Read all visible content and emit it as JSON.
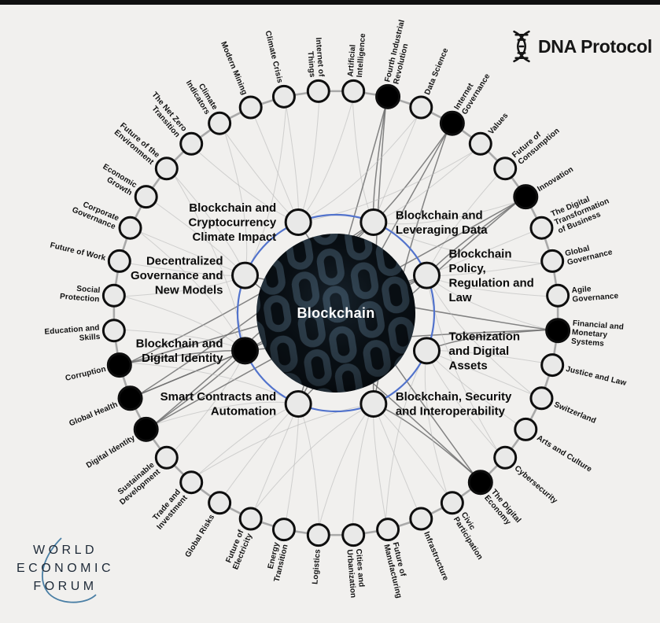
{
  "colors": {
    "background": "#f1f0ee",
    "top_bar": "#101010",
    "node_fill": "#e9e9e8",
    "node_stroke": "#0e0e0e",
    "node_filled": "#000000",
    "ring": "#a9a9a9",
    "inner_ring": "#5273cc",
    "link": "#b9b9b9",
    "link_strong": "#6f6f6f",
    "center_fill": "#060a0e",
    "chain_link": "#2f404d",
    "wef_text": "#1e2a38",
    "swoosh": "#4a7fa5"
  },
  "brand": {
    "dna_label": "DNA Protocol",
    "dna_icon": "dna-helix-icon",
    "wef_lines": [
      "WORLD",
      "ECONOMIC",
      "FORUM"
    ]
  },
  "map": {
    "type": "radial-network",
    "center_label": "Blockchain",
    "start_angle_deg": 4.5,
    "step_deg": 9,
    "inner_topics": [
      {
        "label": "Blockchain and Leveraging Data",
        "lines": [
          "Blockchain and",
          "Leveraging Data"
        ],
        "angle": 22.5,
        "side": "right",
        "filled": false
      },
      {
        "label": "Blockchain Policy, Regulation and Law",
        "lines": [
          "Blockchain",
          "Policy,",
          "Regulation and",
          "Law"
        ],
        "angle": 67.5,
        "side": "right",
        "filled": false
      },
      {
        "label": "Tokenization and Digital Assets",
        "lines": [
          "Tokenization",
          "and Digital",
          "Assets"
        ],
        "angle": 112.5,
        "side": "right",
        "filled": false
      },
      {
        "label": "Blockchain, Security and Interoperability",
        "lines": [
          "Blockchain, Security",
          "and Interoperability"
        ],
        "angle": 157.5,
        "side": "right",
        "filled": false
      },
      {
        "label": "Smart Contracts and Automation",
        "lines": [
          "Smart Contracts and",
          "Automation"
        ],
        "angle": 202.5,
        "side": "left",
        "filled": false
      },
      {
        "label": "Blockchain and Digital Identity",
        "lines": [
          "Blockchain and",
          "Digital Identity"
        ],
        "angle": 247.5,
        "side": "left",
        "filled": true
      },
      {
        "label": "Decentralized Governance and New Models",
        "lines": [
          "Decentralized",
          "Governance and",
          "New Models"
        ],
        "angle": 292.5,
        "side": "left",
        "filled": false
      },
      {
        "label": "Blockchain and Cryptocurrency Climate Impact",
        "lines": [
          "Blockchain and",
          "Cryptocurrency",
          "Climate Impact"
        ],
        "angle": 337.5,
        "side": "left",
        "filled": false
      }
    ],
    "outer_topics": [
      {
        "label": "Artificial Intelligence",
        "lines": [
          "Artificial",
          "Intelligence"
        ],
        "filled": false
      },
      {
        "label": "Fourth Industrial Revolution",
        "lines": [
          "Fourth Industrial",
          "Revolution"
        ],
        "filled": true
      },
      {
        "label": "Data Science",
        "lines": [
          "Data Science"
        ],
        "filled": false
      },
      {
        "label": "Internet Governance",
        "lines": [
          "Internet",
          "Governance"
        ],
        "filled": true
      },
      {
        "label": "Values",
        "lines": [
          "Values"
        ],
        "filled": false
      },
      {
        "label": "Future of Consumption",
        "lines": [
          "Future of",
          "Consumption"
        ],
        "filled": false
      },
      {
        "label": "Innovation",
        "lines": [
          "Innovation"
        ],
        "filled": true
      },
      {
        "label": "The Digital Transformation of Business",
        "lines": [
          "The Digital",
          "Transformation",
          "of Business"
        ],
        "filled": false
      },
      {
        "label": "Global Governance",
        "lines": [
          "Global",
          "Governance"
        ],
        "filled": false
      },
      {
        "label": "Agile Governance",
        "lines": [
          "Agile",
          "Governance"
        ],
        "filled": false
      },
      {
        "label": "Financial and Monetary Systems",
        "lines": [
          "Financial and",
          "Monetary",
          "Systems"
        ],
        "filled": true
      },
      {
        "label": "Justice and Law",
        "lines": [
          "Justice and Law"
        ],
        "filled": false
      },
      {
        "label": "Switzerland",
        "lines": [
          "Switzerland"
        ],
        "filled": false
      },
      {
        "label": "Arts and Culture",
        "lines": [
          "Arts and Culture"
        ],
        "filled": false
      },
      {
        "label": "Cybersecurity",
        "lines": [
          "Cybersecurity"
        ],
        "filled": false
      },
      {
        "label": "The Digital Economy",
        "lines": [
          "The Digital",
          "Economy"
        ],
        "filled": true
      },
      {
        "label": "Civic Participation",
        "lines": [
          "Civic",
          "Participation"
        ],
        "filled": false
      },
      {
        "label": "Infrastructure",
        "lines": [
          "Infrastructure"
        ],
        "filled": false
      },
      {
        "label": "Future of Manufacturing",
        "lines": [
          "Future of",
          "Manufacturing"
        ],
        "filled": false
      },
      {
        "label": "Cities and Urbanization",
        "lines": [
          "Cities and",
          "Urbanization"
        ],
        "filled": false
      },
      {
        "label": "Logistics",
        "lines": [
          "Logistics"
        ],
        "filled": false
      },
      {
        "label": "Energy Transition",
        "lines": [
          "Energy",
          "Transition"
        ],
        "filled": false
      },
      {
        "label": "Future of Electricity",
        "lines": [
          "Future of",
          "Electricity"
        ],
        "filled": false
      },
      {
        "label": "Global Risks",
        "lines": [
          "Global Risks"
        ],
        "filled": false
      },
      {
        "label": "Trade and Investment",
        "lines": [
          "Trade and",
          "Investment"
        ],
        "filled": false
      },
      {
        "label": "Sustainable Development",
        "lines": [
          "Sustainable",
          "Development"
        ],
        "filled": false
      },
      {
        "label": "Digital Identity",
        "lines": [
          "Digital Identity"
        ],
        "filled": true
      },
      {
        "label": "Global Health",
        "lines": [
          "Global Health"
        ],
        "filled": true
      },
      {
        "label": "Corruption",
        "lines": [
          "Corruption"
        ],
        "filled": true
      },
      {
        "label": "Education and Skills",
        "lines": [
          "Education and",
          "Skills"
        ],
        "filled": false
      },
      {
        "label": "Social Protection",
        "lines": [
          "Social",
          "Protection"
        ],
        "filled": false
      },
      {
        "label": "Future of Work",
        "lines": [
          "Future of Work"
        ],
        "filled": false
      },
      {
        "label": "Corporate Governance",
        "lines": [
          "Corporate",
          "Governance"
        ],
        "filled": false
      },
      {
        "label": "Economic Growth",
        "lines": [
          "Economic",
          "Growth"
        ],
        "filled": false
      },
      {
        "label": "Future of the Environment",
        "lines": [
          "Future of the",
          "Environment"
        ],
        "filled": false
      },
      {
        "label": "The Net Zero Transition",
        "lines": [
          "The Net Zero",
          "Transition"
        ],
        "filled": false
      },
      {
        "label": "Climate Indicators",
        "lines": [
          "Climate",
          "Indicators"
        ],
        "filled": false
      },
      {
        "label": "Modern Mining",
        "lines": [
          "Modern Mining"
        ],
        "filled": false
      },
      {
        "label": "Climate Crisis",
        "lines": [
          "Climate Crisis"
        ],
        "filled": false
      },
      {
        "label": "Internet of Things",
        "lines": [
          "Internet of",
          "Things"
        ],
        "filled": false
      }
    ]
  }
}
